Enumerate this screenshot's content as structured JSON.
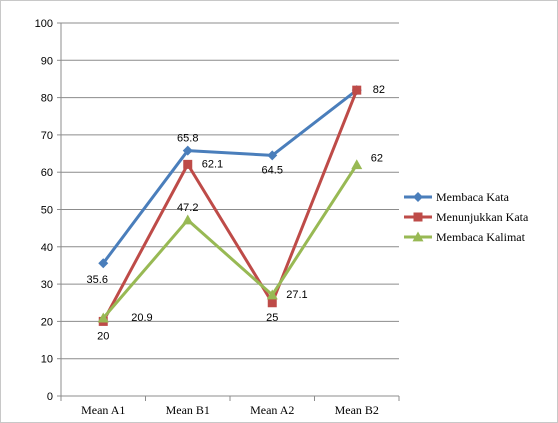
{
  "chart_data": {
    "type": "line",
    "title": "",
    "xlabel": "",
    "ylabel": "",
    "categories": [
      "Mean A1",
      "Mean B1",
      "Mean A2",
      "Mean B2"
    ],
    "ylim": [
      0,
      100
    ],
    "yticks": [
      0,
      10,
      20,
      30,
      40,
      50,
      60,
      70,
      80,
      90,
      100
    ],
    "grid": true,
    "legend": "right",
    "series": [
      {
        "name": "Membaca Kata",
        "values": [
          35.6,
          65.8,
          64.5,
          82
        ],
        "color": "#4a7ebb",
        "marker": "diamond",
        "labels": [
          "35.6",
          "65.8",
          "64.5",
          "82"
        ]
      },
      {
        "name": "Menunjukkan Kata",
        "values": [
          20,
          62.1,
          25,
          82
        ],
        "color": "#be4b48",
        "marker": "square",
        "labels": [
          "20",
          "62.1",
          "25",
          ""
        ]
      },
      {
        "name": "Membaca Kalimat",
        "values": [
          20.9,
          47.2,
          27.1,
          62
        ],
        "color": "#98b954",
        "marker": "triangle",
        "labels": [
          "20.9",
          "47.2",
          "27.1",
          "62"
        ]
      }
    ]
  }
}
